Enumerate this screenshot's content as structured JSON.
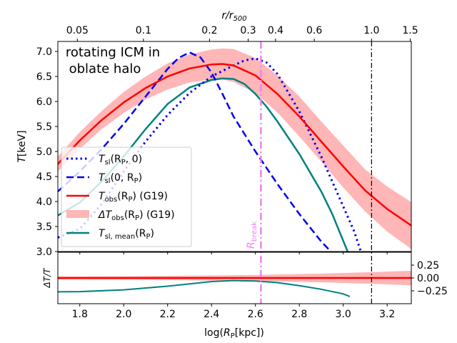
{
  "chart_data": {
    "type": "line",
    "annotation": {
      "line1": "rotating ICM in",
      "line2": "oblate halo"
    },
    "xlabel": "log(R_P[kpc])",
    "xlabel_parts": {
      "a": "log(",
      "b": "R",
      "c": "P",
      "d": "[kpc])"
    },
    "top_xlabel_parts": {
      "a": "r/r",
      "b": "500"
    },
    "ylabel_parts": {
      "a": "T",
      "b": "[keV]"
    },
    "ylabel_bottom_parts": {
      "a": "ΔT/T"
    },
    "xlim": [
      1.7,
      3.31
    ],
    "ylim_top": [
      3.0,
      7.2
    ],
    "ylim_bottom": [
      -0.5,
      0.5
    ],
    "x_ticks": [
      {
        "v": 1.8,
        "label": "1.8"
      },
      {
        "v": 2.0,
        "label": "2.0"
      },
      {
        "v": 2.2,
        "label": "2.2"
      },
      {
        "v": 2.4,
        "label": "2.4"
      },
      {
        "v": 2.6,
        "label": "2.6"
      },
      {
        "v": 2.8,
        "label": "2.8"
      },
      {
        "v": 3.0,
        "label": "3.0"
      },
      {
        "v": 3.2,
        "label": "3.2"
      }
    ],
    "y_ticks_top": [
      {
        "v": 3.0,
        "label": "3.0"
      },
      {
        "v": 3.5,
        "label": "3.5"
      },
      {
        "v": 4.0,
        "label": "4.0"
      },
      {
        "v": 4.5,
        "label": "4.5"
      },
      {
        "v": 5.0,
        "label": "5.0"
      },
      {
        "v": 5.5,
        "label": "5.5"
      },
      {
        "v": 6.0,
        "label": "6.0"
      },
      {
        "v": 6.5,
        "label": "6.5"
      },
      {
        "v": 7.0,
        "label": "7.0"
      }
    ],
    "y_ticks_bottom": [
      {
        "v": 0.25,
        "label": "0.25"
      },
      {
        "v": 0.0,
        "label": "0.00"
      },
      {
        "v": -0.25,
        "label": "−0.25"
      }
    ],
    "top_ticks": [
      {
        "v": 1.7888,
        "label": "0.05"
      },
      {
        "v": 2.0899,
        "label": "0.1"
      },
      {
        "v": 2.3909,
        "label": "0.2"
      },
      {
        "v": 2.567,
        "label": "0.3"
      },
      {
        "v": 2.6919,
        "label": "0.4"
      },
      {
        "v": 2.868,
        "label": "0.6"
      },
      {
        "v": 3.129,
        "label": "1.0"
      },
      {
        "v": 3.3051,
        "label": "1.5"
      }
    ],
    "vlines": [
      {
        "name": "r500",
        "x": 3.129,
        "color": "#000000"
      },
      {
        "name": "R_break",
        "x": 2.625,
        "color": "#ee82ee",
        "label": "R",
        "label_sub": "break"
      }
    ],
    "legend": [
      {
        "key": "t_sl_rp0",
        "a": "T",
        "b": "sl",
        "c": "(R",
        "d": "P",
        "e": ", 0)"
      },
      {
        "key": "t_sl_0rp",
        "a": "T",
        "b": "sl",
        "c": "(0, R",
        "d": "P",
        "e": ")"
      },
      {
        "key": "t_obs",
        "a": "T",
        "b": "obs",
        "c": "(R",
        "d": "P",
        "e": ") (G19)"
      },
      {
        "key": "dt_obs",
        "a": "ΔT",
        "b": "obs",
        "c": "(R",
        "d": "P",
        "e": ") (G19)"
      },
      {
        "key": "t_sl_mean",
        "a": "T",
        "b": "sl, mean",
        "c": "(R",
        "d": "P",
        "e": ")"
      }
    ],
    "series": [
      {
        "key": "t_sl_rp0",
        "name": "T_sl(R_P, 0)",
        "color": "#0000ee",
        "style": "dotted",
        "x": [
          1.7,
          1.8,
          1.9,
          2.0,
          2.1,
          2.2,
          2.3,
          2.4,
          2.5,
          2.55,
          2.6,
          2.65,
          2.7,
          2.8,
          2.9,
          3.0,
          3.05,
          3.08
        ],
        "y": [
          3.28,
          3.45,
          3.95,
          4.6,
          5.2,
          5.73,
          6.17,
          6.5,
          6.72,
          6.82,
          6.86,
          6.78,
          6.55,
          5.8,
          4.9,
          3.9,
          3.4,
          3.0
        ]
      },
      {
        "key": "t_sl_0rp",
        "name": "T_sl(0, R_P)",
        "color": "#0000ee",
        "style": "dashed",
        "x": [
          1.7,
          1.8,
          1.9,
          2.0,
          2.1,
          2.2,
          2.25,
          2.3,
          2.35,
          2.4,
          2.45,
          2.5,
          2.6,
          2.7,
          2.8,
          2.9,
          2.95
        ],
        "y": [
          4.2,
          4.6,
          5.05,
          5.55,
          6.1,
          6.65,
          6.87,
          6.98,
          6.88,
          6.58,
          6.15,
          5.7,
          5.0,
          4.35,
          3.75,
          3.2,
          2.97
        ]
      },
      {
        "key": "t_obs",
        "name": "T_obs(R_P) (G19)",
        "color": "#ff0000",
        "style": "solid",
        "x": [
          1.7,
          1.8,
          1.9,
          2.0,
          2.1,
          2.2,
          2.3,
          2.4,
          2.45,
          2.5,
          2.6,
          2.7,
          2.8,
          2.9,
          3.0,
          3.1,
          3.2,
          3.31
        ],
        "y": [
          4.75,
          5.22,
          5.63,
          5.98,
          6.27,
          6.5,
          6.66,
          6.74,
          6.75,
          6.72,
          6.52,
          6.15,
          5.7,
          5.2,
          4.7,
          4.22,
          3.85,
          3.52
        ]
      },
      {
        "key": "t_sl_mean",
        "name": "T_sl,mean(R_P)",
        "color": "#008080",
        "style": "solid",
        "x": [
          1.7,
          1.8,
          1.9,
          2.0,
          2.1,
          2.2,
          2.3,
          2.4,
          2.45,
          2.5,
          2.55,
          2.6,
          2.65,
          2.7,
          2.8,
          2.9,
          2.95,
          3.02
        ],
        "y": [
          3.72,
          3.98,
          4.4,
          4.9,
          5.45,
          5.95,
          6.28,
          6.43,
          6.46,
          6.45,
          6.35,
          6.15,
          5.9,
          5.6,
          4.95,
          4.2,
          3.75,
          3.0
        ]
      }
    ],
    "band": {
      "key": "dt_obs",
      "name": "ΔT_obs(R_P) (G19)",
      "color": "#ffb6b6",
      "x": [
        1.7,
        1.8,
        1.9,
        2.0,
        2.1,
        2.2,
        2.3,
        2.4,
        2.45,
        2.5,
        2.6,
        2.7,
        2.8,
        2.9,
        3.0,
        3.1,
        3.2,
        3.31
      ],
      "lower": [
        4.6,
        5.05,
        5.45,
        5.77,
        6.04,
        6.24,
        6.38,
        6.44,
        6.44,
        6.39,
        6.17,
        5.78,
        5.3,
        4.8,
        4.28,
        3.8,
        3.4,
        3.05
      ],
      "upper": [
        4.9,
        5.39,
        5.81,
        6.19,
        6.5,
        6.76,
        6.94,
        7.04,
        7.06,
        7.05,
        6.87,
        6.52,
        6.1,
        5.6,
        5.12,
        4.64,
        4.3,
        3.99
      ]
    },
    "residual": {
      "band": {
        "x": [
          1.7,
          2.0,
          2.3,
          2.6,
          2.9,
          3.1,
          3.31
        ],
        "lower": [
          -0.03,
          -0.035,
          -0.045,
          -0.06,
          -0.085,
          -0.11,
          -0.14
        ],
        "upper": [
          0.03,
          0.035,
          0.045,
          0.06,
          0.085,
          0.11,
          0.14
        ]
      },
      "t_obs": {
        "x": [
          1.7,
          3.31
        ],
        "y": [
          0.0,
          0.0
        ]
      },
      "t_sl_mean": {
        "x": [
          1.7,
          1.8,
          2.0,
          2.2,
          2.4,
          2.5,
          2.6,
          2.7,
          2.8,
          2.9,
          3.0,
          3.03
        ],
        "y": [
          -0.27,
          -0.265,
          -0.23,
          -0.16,
          -0.07,
          -0.05,
          -0.06,
          -0.09,
          -0.15,
          -0.22,
          -0.31,
          -0.36
        ]
      }
    }
  }
}
